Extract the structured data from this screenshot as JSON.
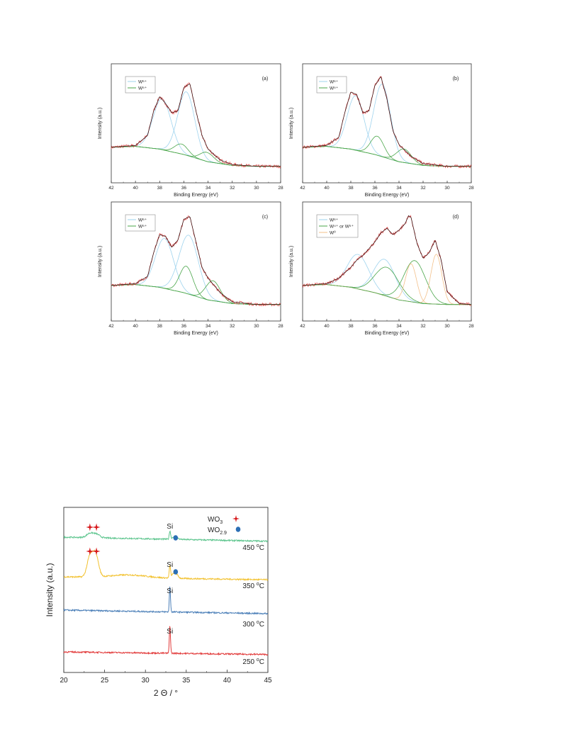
{
  "chart_data": [
    {
      "type": "line",
      "panel_label": "(a)",
      "xlabel": "Binding Energy (eV)",
      "ylabel": "Intensity (a.u.)",
      "xlim": [
        42,
        28
      ],
      "x_reversed": true,
      "xticks": [
        "42",
        "40",
        "38",
        "36",
        "34",
        "32",
        "30",
        "28"
      ],
      "legend": [
        "W⁶⁺",
        "W⁵⁺"
      ],
      "legend_colors": [
        "#9ed3ee",
        "#4aa64a"
      ],
      "series": [
        {
          "role": "background",
          "x": [
            42,
            40,
            38,
            36,
            34,
            32,
            30,
            28
          ],
          "y": [
            0.22,
            0.23,
            0.2,
            0.14,
            0.06,
            0.02,
            0.01,
            0.01
          ]
        },
        {
          "role": "component",
          "legend_index": 0,
          "center": 37.8,
          "height": 0.56,
          "width": 0.75
        },
        {
          "role": "component",
          "legend_index": 0,
          "center": 35.8,
          "height": 0.7,
          "width": 0.7
        },
        {
          "role": "component",
          "legend_index": 1,
          "center": 36.2,
          "height": 0.11,
          "width": 0.55
        },
        {
          "role": "component",
          "legend_index": 1,
          "center": 34.1,
          "height": 0.1,
          "width": 0.55
        },
        {
          "role": "envelope",
          "x": [
            42,
            41,
            40,
            39,
            38.5,
            38,
            37.5,
            37,
            36.5,
            36,
            35.5,
            35,
            34.5,
            34,
            33,
            32,
            30,
            28
          ],
          "y": [
            0.22,
            0.23,
            0.24,
            0.35,
            0.62,
            0.78,
            0.7,
            0.6,
            0.62,
            0.88,
            0.92,
            0.62,
            0.35,
            0.2,
            0.08,
            0.03,
            0.01,
            0.01
          ]
        }
      ]
    },
    {
      "type": "line",
      "panel_label": "(b)",
      "xlabel": "Binding Energy (eV)",
      "ylabel": "Intensity (a.u.)",
      "xlim": [
        42,
        28
      ],
      "x_reversed": true,
      "xticks": [
        "42",
        "40",
        "38",
        "36",
        "34",
        "32",
        "30",
        "28"
      ],
      "legend": [
        "W⁶⁺",
        "W⁵⁺"
      ],
      "legend_colors": [
        "#9ed3ee",
        "#4aa64a"
      ],
      "series": [
        {
          "role": "background",
          "x": [
            42,
            40,
            38,
            36,
            34,
            32,
            30,
            28
          ],
          "y": [
            0.22,
            0.23,
            0.2,
            0.14,
            0.06,
            0.02,
            0.01,
            0.01
          ]
        },
        {
          "role": "component",
          "legend_index": 0,
          "center": 37.6,
          "height": 0.6,
          "width": 0.7
        },
        {
          "role": "component",
          "legend_index": 0,
          "center": 35.4,
          "height": 0.8,
          "width": 0.7
        },
        {
          "role": "component",
          "legend_index": 1,
          "center": 35.8,
          "height": 0.21,
          "width": 0.55
        },
        {
          "role": "component",
          "legend_index": 1,
          "center": 33.6,
          "height": 0.15,
          "width": 0.6
        },
        {
          "role": "envelope",
          "x": [
            42,
            41,
            40,
            39,
            38.5,
            38,
            37.5,
            37,
            36.5,
            36,
            35.5,
            35,
            34.5,
            34,
            33,
            32,
            30,
            28
          ],
          "y": [
            0.22,
            0.23,
            0.24,
            0.33,
            0.6,
            0.83,
            0.8,
            0.6,
            0.62,
            0.9,
            1.0,
            0.75,
            0.4,
            0.25,
            0.12,
            0.04,
            0.01,
            0.01
          ]
        }
      ]
    },
    {
      "type": "line",
      "panel_label": "(c)",
      "xlabel": "Binding Energy (eV)",
      "ylabel": "Intensity (a.u.)",
      "xlim": [
        42,
        28
      ],
      "x_reversed": true,
      "xticks": [
        "42",
        "40",
        "38",
        "36",
        "34",
        "32",
        "30",
        "28"
      ],
      "legend": [
        "W⁶⁺",
        "W⁵⁺"
      ],
      "legend_colors": [
        "#9ed3ee",
        "#4aa64a"
      ],
      "series": [
        {
          "role": "background",
          "x": [
            42,
            40,
            38,
            36,
            34,
            32,
            30,
            28
          ],
          "y": [
            0.22,
            0.23,
            0.2,
            0.14,
            0.06,
            0.02,
            0.01,
            0.01
          ]
        },
        {
          "role": "component",
          "legend_index": 0,
          "center": 37.6,
          "height": 0.55,
          "width": 0.75
        },
        {
          "role": "component",
          "legend_index": 0,
          "center": 35.6,
          "height": 0.65,
          "width": 0.8
        },
        {
          "role": "component",
          "legend_index": 1,
          "center": 35.8,
          "height": 0.3,
          "width": 0.55
        },
        {
          "role": "component",
          "legend_index": 1,
          "center": 33.6,
          "height": 0.22,
          "width": 0.6
        },
        {
          "role": "envelope",
          "x": [
            42,
            41,
            40,
            39,
            38.5,
            38,
            37.5,
            37,
            36.5,
            36,
            35.5,
            35,
            34.5,
            34,
            33,
            32,
            30,
            28
          ],
          "y": [
            0.22,
            0.23,
            0.24,
            0.32,
            0.58,
            0.78,
            0.76,
            0.64,
            0.72,
            0.95,
            0.98,
            0.7,
            0.42,
            0.3,
            0.14,
            0.04,
            0.01,
            0.01
          ]
        }
      ]
    },
    {
      "type": "line",
      "panel_label": "(d)",
      "xlabel": "Binding Energy (eV)",
      "ylabel": "Intensity (a.u.)",
      "xlim": [
        42,
        28
      ],
      "x_reversed": true,
      "xticks": [
        "42",
        "40",
        "38",
        "36",
        "34",
        "32",
        "30",
        "28"
      ],
      "legend": [
        "W⁶⁺",
        "W⁴⁺ or W⁵⁺",
        "W⁰"
      ],
      "legend_colors": [
        "#9ed3ee",
        "#4aa64a",
        "#f3c08a"
      ],
      "series": [
        {
          "role": "background",
          "x": [
            42,
            40,
            38,
            36,
            34,
            32,
            30,
            28
          ],
          "y": [
            0.22,
            0.23,
            0.2,
            0.14,
            0.06,
            0.02,
            0.01,
            0.01
          ]
        },
        {
          "role": "component",
          "legend_index": 0,
          "center": 37.4,
          "height": 0.38,
          "width": 0.9
        },
        {
          "role": "component",
          "legend_index": 0,
          "center": 35.2,
          "height": 0.4,
          "width": 0.9
        },
        {
          "role": "component",
          "legend_index": 1,
          "center": 35.0,
          "height": 0.32,
          "width": 1.0
        },
        {
          "role": "component",
          "legend_index": 1,
          "center": 32.7,
          "height": 0.46,
          "width": 0.9
        },
        {
          "role": "component",
          "legend_index": 2,
          "center": 33.0,
          "height": 0.42,
          "width": 0.45
        },
        {
          "role": "component",
          "legend_index": 2,
          "center": 30.9,
          "height": 0.55,
          "width": 0.45
        },
        {
          "role": "envelope",
          "x": [
            42,
            41,
            40,
            39,
            38,
            37.5,
            37,
            36,
            35.5,
            35,
            34.5,
            34,
            33.5,
            33.2,
            33,
            32.5,
            32,
            31.5,
            31,
            30.5,
            30,
            29,
            28
          ],
          "y": [
            0.22,
            0.23,
            0.24,
            0.3,
            0.42,
            0.5,
            0.55,
            0.7,
            0.8,
            0.85,
            0.78,
            0.83,
            0.9,
            0.99,
            0.97,
            0.68,
            0.52,
            0.58,
            0.72,
            0.5,
            0.15,
            0.02,
            0.01
          ]
        }
      ]
    },
    {
      "type": "line",
      "xlabel": "2 Θ / °",
      "ylabel": "Intensity (a.u.)",
      "xlim": [
        20,
        45
      ],
      "xticks": [
        "20",
        "25",
        "30",
        "35",
        "40",
        "45"
      ],
      "legend": [
        {
          "label": "WO3",
          "base": "WO",
          "sub": "3",
          "marker": "star",
          "color": "#d7191c"
        },
        {
          "label": "WO2.9",
          "base": "WO",
          "sub": "2.9",
          "marker": "circle",
          "color": "#2c6fb5"
        }
      ],
      "series": [
        {
          "name": "450 °C",
          "base": "450 ",
          "sup": "o",
          "unit": "C",
          "color": "#5bc48c",
          "offset": 3.4,
          "peaks": [
            {
              "x": 23.2,
              "h": 0.18,
              "w": 0.4
            },
            {
              "x": 24.0,
              "h": 0.15,
              "w": 0.4
            },
            {
              "x": 33.0,
              "h": 0.35,
              "w": 0.08
            },
            {
              "x": 33.6,
              "h": 0.12,
              "w": 0.3
            }
          ],
          "slope": 0.35
        },
        {
          "name": "350 °C",
          "base": "350 ",
          "sup": "o",
          "unit": "C",
          "color": "#f2c12e",
          "offset": 2.2,
          "peaks": [
            {
              "x": 23.2,
              "h": 0.85,
              "w": 0.35
            },
            {
              "x": 23.9,
              "h": 0.95,
              "w": 0.35
            },
            {
              "x": 33.0,
              "h": 0.5,
              "w": 0.08
            },
            {
              "x": 33.6,
              "h": 0.25,
              "w": 0.3
            }
          ],
          "slope": 0.25
        },
        {
          "name": "300 °C",
          "base": "300 ",
          "sup": "o",
          "unit": "C",
          "color": "#4b7fb8",
          "offset": 1.1,
          "peaks": [
            {
              "x": 33.0,
              "h": 1.1,
              "w": 0.07
            }
          ],
          "slope": 0.3
        },
        {
          "name": "250 °C",
          "base": "250 ",
          "sup": "o",
          "unit": "C",
          "color": "#e23b3b",
          "offset": 0.0,
          "peaks": [
            {
              "x": 33.0,
              "h": 1.2,
              "w": 0.07
            }
          ],
          "slope": 0.22
        }
      ],
      "annotations": {
        "si_label": "Si",
        "si_peaks": [
          {
            "series": 0,
            "x": 33.0
          },
          {
            "series": 1,
            "x": 33.0
          },
          {
            "series": 2,
            "x": 33.0
          },
          {
            "series": 3,
            "x": 33.0
          }
        ],
        "wo3_markers": [
          {
            "series": 0,
            "x": [
              23.2,
              24.0
            ]
          },
          {
            "series": 1,
            "x": [
              23.2,
              24.0
            ]
          }
        ],
        "wo29_markers": [
          {
            "series": 0,
            "x": 33.7
          },
          {
            "series": 1,
            "x": 33.7
          }
        ]
      }
    }
  ]
}
